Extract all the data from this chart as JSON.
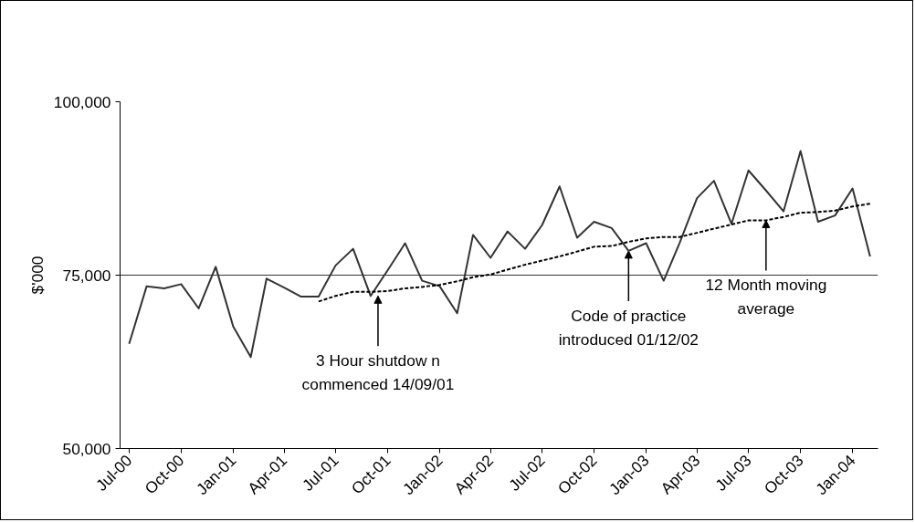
{
  "chart_data": {
    "type": "line",
    "ylabel": "$'000",
    "x": [
      "2000-07",
      "2000-08",
      "2000-09",
      "2000-10",
      "2000-11",
      "2000-12",
      "2001-01",
      "2001-02",
      "2001-03",
      "2001-04",
      "2001-05",
      "2001-06",
      "2001-07",
      "2001-08",
      "2001-09",
      "2001-10",
      "2001-11",
      "2001-12",
      "2002-01",
      "2002-02",
      "2002-03",
      "2002-04",
      "2002-05",
      "2002-06",
      "2002-07",
      "2002-08",
      "2002-09",
      "2002-10",
      "2002-11",
      "2002-12",
      "2003-01",
      "2003-02",
      "2003-03",
      "2003-04",
      "2003-05",
      "2003-06",
      "2003-07",
      "2003-08",
      "2003-09",
      "2003-10",
      "2003-11",
      "2003-12",
      "2004-01",
      "2004-02"
    ],
    "series": [
      {
        "color": "#333333",
        "line_style": "solid",
        "values": [
          65100,
          73400,
          73100,
          73700,
          70200,
          76200,
          67600,
          63200,
          74500,
          73200,
          71900,
          71900,
          76400,
          78800,
          72000,
          75700,
          79600,
          74200,
          73400,
          69500,
          80800,
          77500,
          81300,
          78800,
          82200,
          87800,
          80400,
          82700,
          81800,
          78500,
          79600,
          74200,
          79600,
          86100,
          88600,
          82400,
          90100,
          87200,
          84200,
          92900,
          82700,
          83600,
          87500,
          77700
        ]
      },
      {
        "color": "#000000",
        "line_style": "dashed",
        "x": [
          "2001-06",
          "2001-07",
          "2001-08",
          "2001-09",
          "2001-10",
          "2001-11",
          "2001-12",
          "2002-01",
          "2002-02",
          "2002-03",
          "2002-04",
          "2002-05",
          "2002-06",
          "2002-07",
          "2002-08",
          "2002-09",
          "2002-10",
          "2002-11",
          "2002-12",
          "2003-01",
          "2003-02",
          "2003-03",
          "2003-04",
          "2003-05",
          "2003-06",
          "2003-07",
          "2003-08",
          "2003-09",
          "2003-10",
          "2003-11",
          "2003-12",
          "2004-01",
          "2004-02"
        ],
        "values": [
          71200,
          72000,
          72600,
          72600,
          72700,
          73100,
          73300,
          73600,
          74100,
          74700,
          75100,
          75800,
          76500,
          77100,
          77700,
          78400,
          79100,
          79200,
          79800,
          80300,
          80500,
          80500,
          81100,
          81700,
          82300,
          82900,
          82900,
          83400,
          84000,
          84100,
          84300,
          84900,
          85300
        ]
      }
    ],
    "xlim": [
      "2000-06-15",
      "2004-02-15"
    ],
    "xticks": [
      {
        "value": "2000-07",
        "label": "Jul-00"
      },
      {
        "value": "2000-10",
        "label": "Oct-00"
      },
      {
        "value": "2001-01",
        "label": "Jan-01"
      },
      {
        "value": "2001-04",
        "label": "Apr-01"
      },
      {
        "value": "2001-07",
        "label": "Jul-01"
      },
      {
        "value": "2001-10",
        "label": "Oct-01"
      },
      {
        "value": "2002-01",
        "label": "Jan-02"
      },
      {
        "value": "2002-04",
        "label": "Apr-02"
      },
      {
        "value": "2002-07",
        "label": "Jul-02"
      },
      {
        "value": "2002-10",
        "label": "Oct-02"
      },
      {
        "value": "2003-01",
        "label": "Jan-03"
      },
      {
        "value": "2003-04",
        "label": "Apr-03"
      },
      {
        "value": "2003-07",
        "label": "Jul-03"
      },
      {
        "value": "2003-10",
        "label": "Oct-03"
      },
      {
        "value": "2004-01",
        "label": "Jan-04"
      }
    ],
    "ylim": [
      50000,
      100000
    ],
    "yticks": [
      {
        "value": 50000,
        "label": "50,000"
      },
      {
        "value": 75000,
        "label": "75,000"
      },
      {
        "value": 100000,
        "label": "100,000"
      }
    ],
    "grid": "y",
    "marker": "none",
    "annotations": [
      {
        "text": "3 Hour shutdow n\ncommenced 14/09/01",
        "x": "2001-09-14",
        "y": 72000
      },
      {
        "text": "Code of practice\nintroduced 01/12/02",
        "x": "2002-12-01",
        "y": 78500
      },
      {
        "text": "12 Month moving\naverage",
        "x": "2003-08-01",
        "y": 82900
      }
    ]
  }
}
